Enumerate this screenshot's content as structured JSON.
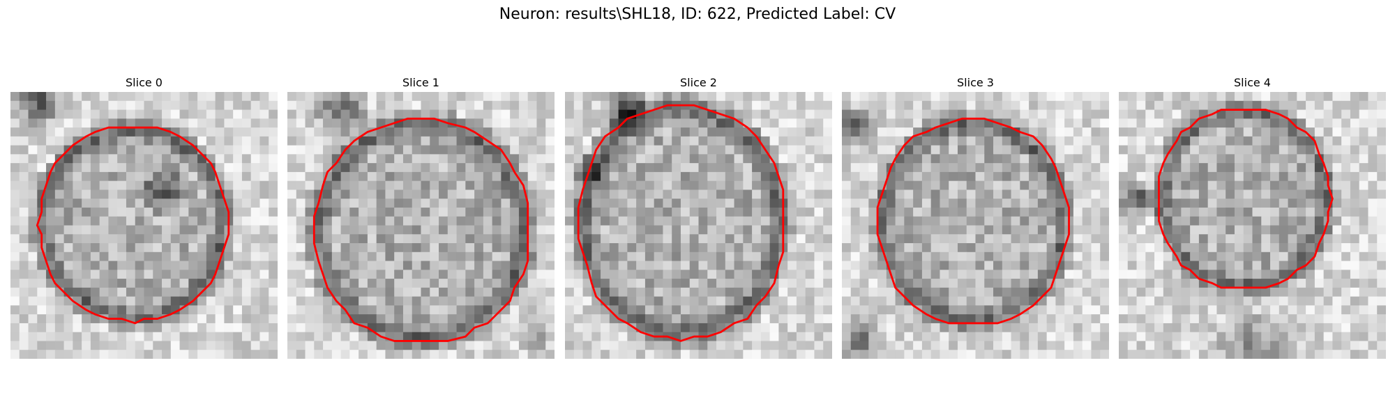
{
  "figure": {
    "title": "Neuron: results\\SHL18, ID: 622, Predicted Label: CV"
  },
  "contour_color": "#ff0000",
  "panels": [
    {
      "title": "Slice 0",
      "seed": 11
    },
    {
      "title": "Slice 1",
      "seed": 23
    },
    {
      "title": "Slice 2",
      "seed": 37
    },
    {
      "title": "Slice 3",
      "seed": 51
    },
    {
      "title": "Slice 4",
      "seed": 67
    }
  ]
}
